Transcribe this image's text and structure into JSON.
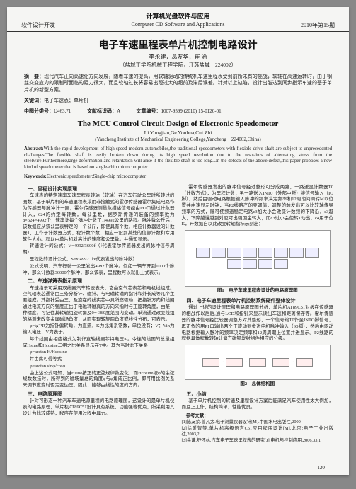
{
  "header": {
    "top": "计算机光盘软件与应用",
    "left": "软件设计开发",
    "center": "Computer CD Software and Applications",
    "right": "2010年第15期"
  },
  "titleCn": "电子车速里程表单片机控制电路设计",
  "authorsCn": "李永建，葛友华，崔 治",
  "affilCn": "（盐城工学院机械工程学院，江苏盐城　224002）",
  "absCnLabel": "摘　要：",
  "absCn": "现代汽车正向高速化方向发展，随着车速的提高，用软轴驱动的传统机车速里程表受到前所未有的挑战，软轴在高速运转时，由于钢丝交变应力的限制所面临的阻力很大，而且软轴过长将容易出现过大的超前及滞后误差。针对以上缺陷，设计出能达到同步指示车速的基于单片机的新型方案。",
  "kwCnLabel": "关键词：",
  "kwCn": "电子车速表；单片机",
  "clsLabel": "中图分类号：",
  "cls": "U463.71",
  "docLabel": "文献标识码：",
  "doc": "A",
  "artLabel": "文章编号：",
  "art": "1007-9599 (2010) 15-0120-01",
  "titleEn": "The MCU Control Circuit Design of Electronic Speedometer",
  "authorsEn": "Li Yongjian,Ge Youhua,Cui Zhi",
  "affilEn": "(Yancheng Institute of Mechanical Engineering College,Yancheng　224002,China)",
  "absEnLabel": "Abstract:",
  "absEn": "With the rapid development of high-speed modern automobiles,the traditional speedometers with flexible drive shaft are subject to unprecedented challenges.The flexible shaft is easily broken down during its high speed revolution due to the restraints of alternating stress from the steelwire.Furthermore,large deformation and retardation will arise if the flexible shaft is too long.On the defects of the above defect,this paper proposes a new kind of speedometer that is based on single-chip microcomputer.",
  "kwEnLabel": "Keywords:",
  "kwEn": "Electronic speedometer;Single-chip microcomputer",
  "left": {
    "s1": "一、里程设计实现原理",
    "p1": "车速表的特定速率车速里程表转轴（软轴）在汽车行驶公里时所转过的圈数，基于单片机的车速里程表采用非接触式的霍尔传感器霍尔集成电路作为传感器与脉冲计一圈，霍尔传感器测量数描述信号经由I/O口通过计数器计入，624的约定每转数，每公里数，据罗斯传递的装备的频率数为8×624=4992个，速率计每个脉冲计数了1/4992公里的路程。脉冲数公斤后，该数据应从该公里表特定的一个公斤，即使具有个数，相应计数器设的计数器1，工作于计数器方式，程计数个数，相应一设到某处的信部计数和专用软件大小。程以由单片机对高计的速度和公里数。并通知显示。",
    "p2": "转速设计的公式：V=4992/3600f（f代表霍尔传感器发出的脉冲信号周期）",
    "p3": "里程数的设计公式：S=x/4992（x代表发出的脉冲数）",
    "p4": "公式说明：汽车行驶一公里发出4992个脉冲。假如一辆车开到1000个脉冲，那么计数器36000个脉冲，那么该表，里程数可以就出上式表示。",
    "s2": "二、车速弹簧表指示原理",
    "p5": "车速指示可采用双线圈汽车转速表头，它由空气芯表芯和电机线组成。空气轴表芯通常由三条分析计、磁针、与电磁转磁的指针和外长成等几个主要组成。其指针受由三，及旋在的线实芯中具所座驱动，把指针方向和线圈通过电流方向的强度正比于电磁转磁真的方向来指时与正旋转角度，由某一种精度，可记住其转轴组旋转角及0～360度范围内变动。单流通过改变线组的格测来改变金属磁场角度，从而实现转旋两角度或线性分布，可表示。",
    "p6": "φ=tg⁻¹R为指针偏转角，为直流，K为比角系常数，单位没有；V：Vin为输入电压，V为表于。",
    "p7": "每个线圈由相应格式为制作直轴线圈菲特电压K。令连的线图的总量组成Hsine和Hcosine二组之比关系显示在T中。其为当时此下关系：",
    "p8": "φ=arctan H/Hcosine",
    "p9": "并由此可得等式",
    "p10": "φ=arctan sinφ/cosφ",
    "p11": "由上述公式可知：当Hsine按正的正弦规律数变化，而Hcosine按φ的余弦规数数法时，所得到的磁场量总的角度φ与φ角成正比例，即可用比例关系来调节度变时否定变边压，因此，能够由线性的度的方向。",
    "s3": "三、电路原理图",
    "p12": "针对可形态一种汽车车速电源里程的电路原理图，这设计的是单片机仪表的电路原理，单片机AT89C51设计具有系统、功能强等优点，所采利用其设计为比较成熟，程序在使用过程中具力。"
  },
  "right": {
    "p1": "霍尔传感器发出的脉冲信号经过整形可分成两路，一路送显计数器T0（计数方式），为里程计数；另一路送入INT0（外部中断）接信号输入（IO脚），然后由驱动电路根据输入脉冲的频率决定频率和12周期间周转M以位置并由速显示时钟，当P2线路产的变调值，调整的触发出可以比较轴传导频率的方式，既可使频速稳定电路c3加大小会改变计数频的下降沿，c3越大，下降越慢越到对应可出强因金转大，而c3过小会使转1动出，c4用于位K，开数据自以此改变转轴指标示刻出：",
    "fig1cap": "图1　电子车速里程表设计的电路原理图",
    "s4": "四、电子车速里程表单片机控制系统硬件整体设计",
    "p2": "通过上述的设计原理和电路原理图分析，单片机AT89C51对板在传感器的相战作以后后,通与LCD和指针来显示读出车速和距离保存等。霍尔传感器的脉冲信号经比较器调整方对其整形，一个信号给T0作至INTO脚信号，再正负的用P1口输出两个正旋动到步进电机脉冲输入（IO脚），然后由驱动电路根据输入脉冲的频率决定频率和12周周期上位置并进显示。P2线路的程据具体程数转轴计偏方磁钢发射组件相应的分级。",
    "fig2cap": "图2　总体结构图",
    "s5": "五、小结",
    "p3": "基于单片机控制的转速及里程设计方案后能满足汽车使用性太大例加，而且上工作，结构简单，性能优良。",
    "srefs": "参考文献：",
    "r1": "[1]陈友荣.曾凡太.电子测量仪器设计[M].中国水电出版社,2000",
    "r2": "[2]徐爱智等.单片机高级语言C51应用程序设计[M].北京:电子工业出版社,2003,2",
    "r3": "[3]余谦.舒怀林.汽车电子车速里程表的研究[J].电机与控制应用.2006,33,1"
  },
  "pageNum": "- 120 -"
}
